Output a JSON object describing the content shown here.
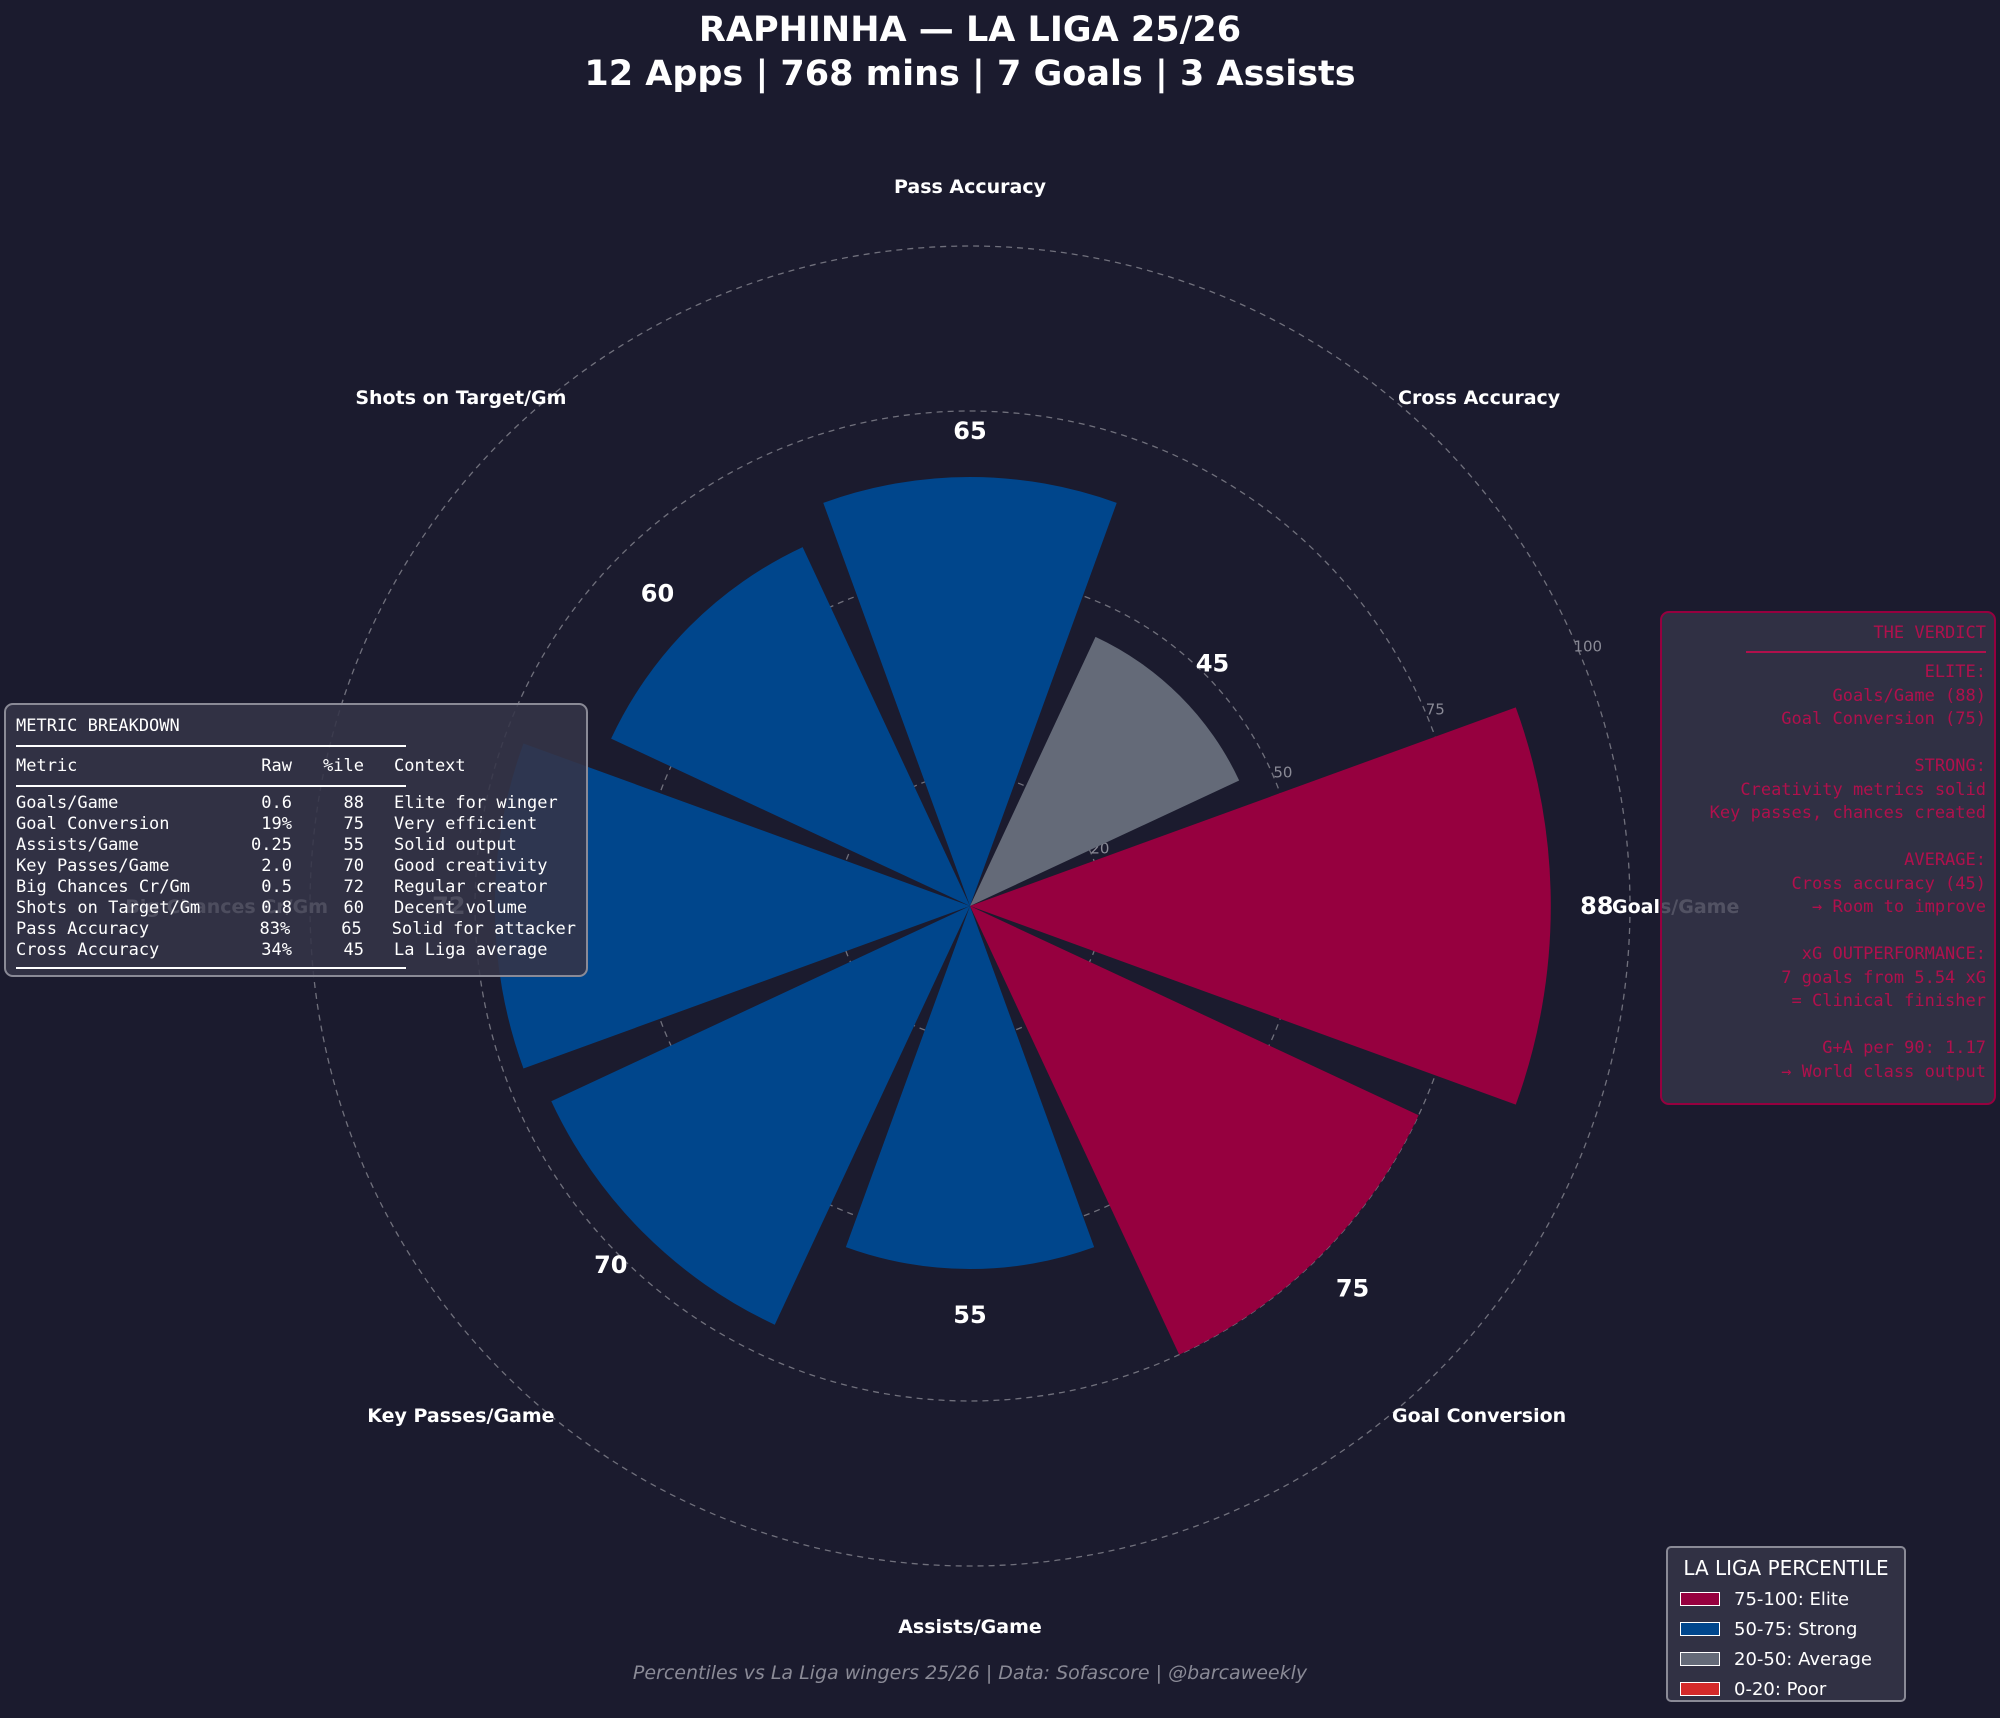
{
  "header": {
    "title_line1": "RAPHINHA — LA LIGA 25/26",
    "title_line2": "12 Apps | 768 mins | 7 Goals | 3 Assists"
  },
  "chart_data": {
    "type": "polar-bar",
    "categories": [
      "Goals/Game",
      "Goal Conversion",
      "Assists/Game",
      "Key Passes/Game",
      "Big Chances Cr/Gm",
      "Shots on Target/Gm",
      "Pass Accuracy",
      "Cross Accuracy"
    ],
    "values": [
      88,
      75,
      55,
      70,
      72,
      60,
      65,
      45
    ],
    "rlim": [
      0,
      100
    ],
    "ring_ticks": [
      20,
      50,
      75,
      100
    ],
    "grid": true,
    "legend_placement": "bottom-right",
    "tier_colors": {
      "elite": "#96003f",
      "strong": "#00468c",
      "average": "#646a78",
      "poor": "#d42a2a"
    }
  },
  "breakdown": {
    "title": "METRIC BREAKDOWN",
    "columns": [
      "Metric",
      "Raw",
      "%ile",
      "Context"
    ],
    "rows": [
      [
        "Goals/Game",
        "0.6",
        "88",
        "Elite for winger"
      ],
      [
        "Goal Conversion",
        "19%",
        "75",
        "Very efficient"
      ],
      [
        "Assists/Game",
        "0.25",
        "55",
        "Solid output"
      ],
      [
        "Key Passes/Game",
        "2.0",
        "70",
        "Good creativity"
      ],
      [
        "Big Chances Cr/Gm",
        "0.5",
        "72",
        "Regular creator"
      ],
      [
        "Shots on Target/Gm",
        "0.8",
        "60",
        "Decent volume"
      ],
      [
        "Pass Accuracy",
        "83%",
        "65",
        "Solid for attacker"
      ],
      [
        "Cross Accuracy",
        "34%",
        "45",
        "La Liga average"
      ]
    ]
  },
  "verdict": {
    "title": "THE VERDICT",
    "lines": [
      "ELITE:",
      "Goals/Game (88)",
      "Goal Conversion (75)",
      "",
      "STRONG:",
      "Creativity metrics solid",
      "Key passes, chances created",
      "",
      "AVERAGE:",
      "Cross accuracy (45)",
      "→ Room to improve",
      "",
      "xG OUTPERFORMANCE:",
      "7 goals from 5.54 xG",
      "= Clinical finisher",
      "",
      "G+A per 90: 1.17",
      "→ World class output"
    ]
  },
  "legend": {
    "title": "LA LIGA PERCENTILE",
    "items": [
      {
        "label": "75-100: Elite",
        "color": "#96003f"
      },
      {
        "label": "50-75: Strong",
        "color": "#00468c"
      },
      {
        "label": "20-50: Average",
        "color": "#646a78"
      },
      {
        "label": "0-20: Poor",
        "color": "#d42a2a"
      }
    ]
  },
  "footer": "Percentiles vs La Liga wingers 25/26 | Data: Sofascore | @barcaweekly"
}
